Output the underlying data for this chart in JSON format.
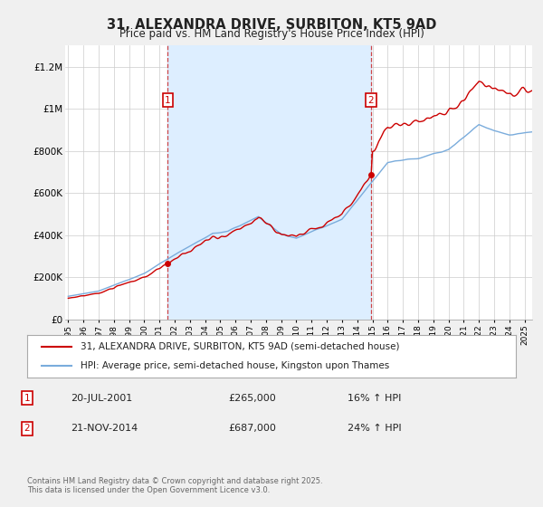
{
  "title": "31, ALEXANDRA DRIVE, SURBITON, KT5 9AD",
  "subtitle": "Price paid vs. HM Land Registry's House Price Index (HPI)",
  "legend_line1": "31, ALEXANDRA DRIVE, SURBITON, KT5 9AD (semi-detached house)",
  "legend_line2": "HPI: Average price, semi-detached house, Kingston upon Thames",
  "footnote": "Contains HM Land Registry data © Crown copyright and database right 2025.\nThis data is licensed under the Open Government Licence v3.0.",
  "purchase1_date": "20-JUL-2001",
  "purchase1_price": 265000,
  "purchase1_label": "£265,000",
  "purchase1_hpi": "16% ↑ HPI",
  "purchase1_year": 2001.55,
  "purchase2_date": "21-NOV-2014",
  "purchase2_price": 687000,
  "purchase2_label": "£687,000",
  "purchase2_hpi": "24% ↑ HPI",
  "purchase2_year": 2014.89,
  "ylim": [
    0,
    1300000
  ],
  "xlim": [
    1994.8,
    2025.5
  ],
  "yticks": [
    0,
    200000,
    400000,
    600000,
    800000,
    1000000,
    1200000
  ],
  "ytick_labels": [
    "£0",
    "£200K",
    "£400K",
    "£600K",
    "£800K",
    "£1M",
    "£1.2M"
  ],
  "plot_bg": "#ffffff",
  "fig_bg": "#f0f0f0",
  "red_color": "#cc0000",
  "blue_color": "#7aacdc",
  "shade_color": "#ddeeff",
  "vline_color": "#cc3333",
  "grid_color": "#cccccc"
}
